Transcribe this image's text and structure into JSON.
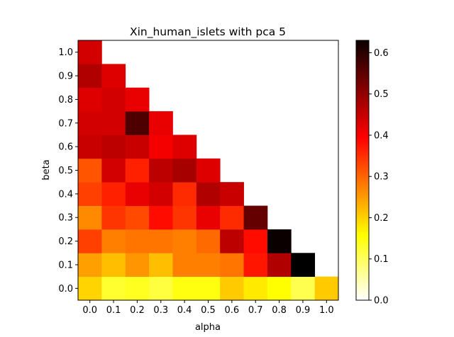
{
  "chart_data": {
    "type": "heatmap",
    "title": "Xin_human_islets with pca 5",
    "xlabel": "alpha",
    "ylabel": "beta",
    "x": [
      0.0,
      0.1,
      0.2,
      0.3,
      0.4,
      0.5,
      0.6,
      0.7,
      0.8,
      0.9,
      1.0
    ],
    "y": [
      0.0,
      0.1,
      0.2,
      0.3,
      0.4,
      0.5,
      0.6,
      0.7,
      0.8,
      0.9,
      1.0
    ],
    "x_tick_labels": [
      "0.0",
      "0.1",
      "0.2",
      "0.3",
      "0.4",
      "0.5",
      "0.6",
      "0.7",
      "0.8",
      "0.9",
      "1.0"
    ],
    "y_tick_labels": [
      "0.0",
      "0.1",
      "0.2",
      "0.3",
      "0.4",
      "0.5",
      "0.6",
      "0.7",
      "0.8",
      "0.9",
      "1.0"
    ],
    "values": [
      [
        0.2,
        0.13,
        0.14,
        0.12,
        0.15,
        0.15,
        0.21,
        0.18,
        0.16,
        0.11,
        0.21
      ],
      [
        0.25,
        0.22,
        0.26,
        0.22,
        0.28,
        0.28,
        0.29,
        0.38,
        0.47,
        0.63,
        null
      ],
      [
        0.34,
        0.28,
        0.29,
        0.29,
        0.28,
        0.3,
        0.46,
        0.39,
        0.62,
        null,
        null
      ],
      [
        0.27,
        0.35,
        0.33,
        0.39,
        0.35,
        0.42,
        0.36,
        0.54,
        null,
        null,
        null
      ],
      [
        0.34,
        0.37,
        0.42,
        0.44,
        0.36,
        0.47,
        0.45,
        null,
        null,
        null,
        null
      ],
      [
        0.32,
        0.44,
        0.37,
        0.46,
        0.48,
        0.43,
        null,
        null,
        null,
        null,
        null
      ],
      [
        0.45,
        0.46,
        0.45,
        0.41,
        0.43,
        null,
        null,
        null,
        null,
        null,
        null
      ],
      [
        0.44,
        0.44,
        0.56,
        0.42,
        null,
        null,
        null,
        null,
        null,
        null,
        null
      ],
      [
        0.43,
        0.44,
        0.42,
        null,
        null,
        null,
        null,
        null,
        null,
        null,
        null
      ],
      [
        0.47,
        0.43,
        null,
        null,
        null,
        null,
        null,
        null,
        null,
        null,
        null
      ],
      [
        0.44,
        null,
        null,
        null,
        null,
        null,
        null,
        null,
        null,
        null,
        null
      ]
    ],
    "colormap": "hot_r",
    "colorbar": {
      "vmin": 0.0,
      "vmax": 0.63,
      "ticks": [
        0.0,
        0.1,
        0.2,
        0.3,
        0.4,
        0.5,
        0.6
      ],
      "tick_labels": [
        "0.0",
        "0.1",
        "0.2",
        "0.3",
        "0.4",
        "0.5",
        "0.6"
      ]
    },
    "grid": false
  }
}
